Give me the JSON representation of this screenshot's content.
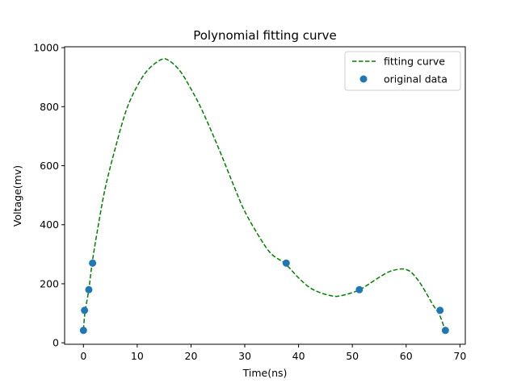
{
  "chart_data": {
    "type": "scatter",
    "title": "Polynomial fitting curve",
    "xlabel": "Time(ns)",
    "ylabel": "Voltage(mv)",
    "xlim": [
      -3.5,
      71
    ],
    "ylim": [
      -5,
      1003
    ],
    "xticks": [
      0,
      10,
      20,
      30,
      40,
      50,
      60,
      70
    ],
    "yticks": [
      0,
      200,
      400,
      600,
      800,
      1000
    ],
    "grid": false,
    "legend_position": "top-right",
    "series": [
      {
        "name": "fitting curve",
        "kind": "line",
        "style": "dashed",
        "color": "#008000",
        "x": [
          0,
          0.3,
          1.0,
          1.6,
          2.5,
          4,
          6,
          8,
          10,
          12,
          14.5,
          16,
          18,
          20,
          22,
          25,
          28,
          30,
          33,
          35,
          37.5,
          40,
          42,
          44,
          46.5,
          48,
          50,
          51.4,
          53,
          55,
          57,
          59,
          60,
          61,
          62.5,
          64,
          65,
          66.2,
          67.3
        ],
        "y": [
          45,
          105,
          180,
          268,
          370,
          520,
          665,
          790,
          870,
          925,
          960,
          955,
          920,
          860,
          790,
          665,
          530,
          445,
          350,
          300,
          268,
          220,
          188,
          170,
          158,
          160,
          170,
          180,
          198,
          222,
          242,
          250,
          248,
          238,
          205,
          160,
          128,
          95,
          40
        ]
      },
      {
        "name": "original data",
        "kind": "scatter",
        "color": "#1f77b4",
        "x": [
          0,
          0.2,
          1.0,
          1.7,
          37.7,
          51.3,
          66.3,
          67.3
        ],
        "y": [
          42,
          110,
          180,
          270,
          270,
          180,
          110,
          42
        ]
      }
    ]
  }
}
